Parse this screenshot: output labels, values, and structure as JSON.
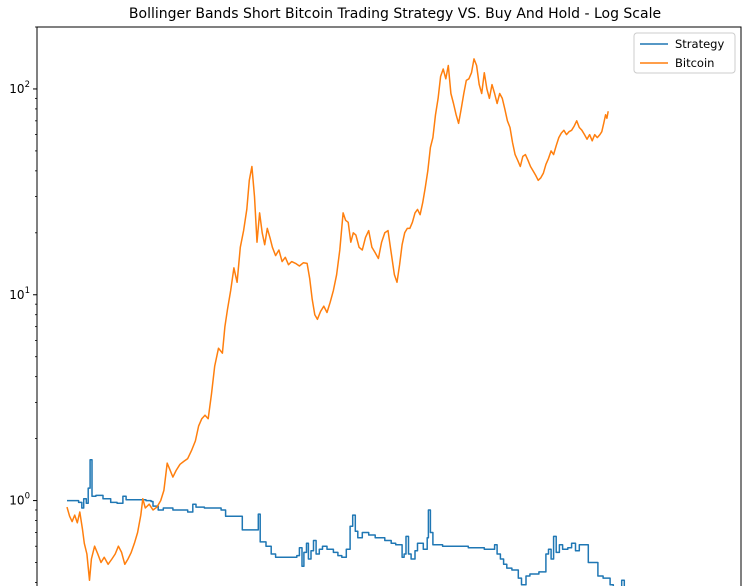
{
  "chart_data": {
    "type": "line",
    "title": "Bollinger Bands Short Bitcoin Trading Strategy VS. Buy And Hold - Log Scale",
    "xlabel": "",
    "ylabel": "",
    "y_scale": "log",
    "ylim": [
      0.34,
      200
    ],
    "xlim": [
      0,
      100
    ],
    "y_ticks": [
      {
        "value": 1,
        "base": "10",
        "exp": "0"
      },
      {
        "value": 10,
        "base": "10",
        "exp": "1"
      },
      {
        "value": 100,
        "base": "10",
        "exp": "2"
      }
    ],
    "x_tick_labels": [],
    "legend_placement": "upper right",
    "grid": false,
    "series": [
      {
        "name": "Strategy",
        "color": "#1f77b4",
        "step": true,
        "points": [
          [
            0,
            1.0
          ],
          [
            1.2,
            1.0
          ],
          [
            1.8,
            0.98
          ],
          [
            2.3,
            0.92
          ],
          [
            2.6,
            1.02
          ],
          [
            3.0,
            0.97
          ],
          [
            3.3,
            1.15
          ],
          [
            3.6,
            1.58
          ],
          [
            3.9,
            1.05
          ],
          [
            4.5,
            1.06
          ],
          [
            5.6,
            1.02
          ],
          [
            6.8,
            0.98
          ],
          [
            7.8,
            0.97
          ],
          [
            8.7,
            1.05
          ],
          [
            9.2,
            1.01
          ],
          [
            10.5,
            1.01
          ],
          [
            12.3,
            1.0
          ],
          [
            13.1,
            0.99
          ],
          [
            13.4,
            0.94
          ],
          [
            14.2,
            0.9
          ],
          [
            15.0,
            0.92
          ],
          [
            16.5,
            0.9
          ],
          [
            18.8,
            0.88
          ],
          [
            19.6,
            0.96
          ],
          [
            20.1,
            0.93
          ],
          [
            21.4,
            0.92
          ],
          [
            24.0,
            0.9
          ],
          [
            24.7,
            0.84
          ],
          [
            27.3,
            0.72
          ],
          [
            29.4,
            0.72
          ],
          [
            29.8,
            0.86
          ],
          [
            30.1,
            0.63
          ],
          [
            31.0,
            0.6
          ],
          [
            31.8,
            0.55
          ],
          [
            32.5,
            0.53
          ],
          [
            35.8,
            0.54
          ],
          [
            36.2,
            0.59
          ],
          [
            36.6,
            0.48
          ],
          [
            36.9,
            0.56
          ],
          [
            37.3,
            0.62
          ],
          [
            37.6,
            0.52
          ],
          [
            38.0,
            0.57
          ],
          [
            38.4,
            0.64
          ],
          [
            38.8,
            0.55
          ],
          [
            39.3,
            0.58
          ],
          [
            39.8,
            0.6
          ],
          [
            40.5,
            0.58
          ],
          [
            41.5,
            0.56
          ],
          [
            42.2,
            0.54
          ],
          [
            42.8,
            0.53
          ],
          [
            43.0,
            0.53
          ],
          [
            43.5,
            0.58
          ],
          [
            44.1,
            0.75
          ],
          [
            44.5,
            0.85
          ],
          [
            44.9,
            0.71
          ],
          [
            45.3,
            0.66
          ],
          [
            46.0,
            0.7
          ],
          [
            47.0,
            0.68
          ],
          [
            48.0,
            0.66
          ],
          [
            49.5,
            0.64
          ],
          [
            50.5,
            0.62
          ],
          [
            51.2,
            0.61
          ],
          [
            51.8,
            0.61
          ],
          [
            52.2,
            0.53
          ],
          [
            52.5,
            0.55
          ],
          [
            52.8,
            0.67
          ],
          [
            53.2,
            0.55
          ],
          [
            53.6,
            0.52
          ],
          [
            54.2,
            0.57
          ],
          [
            54.6,
            0.62
          ],
          [
            55.0,
            0.62
          ],
          [
            55.5,
            0.58
          ],
          [
            56.1,
            0.66
          ],
          [
            56.3,
            0.9
          ],
          [
            56.6,
            0.7
          ],
          [
            57.0,
            0.61
          ],
          [
            58.5,
            0.6
          ],
          [
            60.0,
            0.6
          ],
          [
            62.5,
            0.59
          ],
          [
            65.0,
            0.58
          ],
          [
            66.1,
            0.58
          ],
          [
            66.6,
            0.61
          ],
          [
            67.0,
            0.55
          ],
          [
            67.5,
            0.52
          ],
          [
            68.0,
            0.49
          ],
          [
            68.5,
            0.47
          ],
          [
            69.3,
            0.46
          ],
          [
            70.3,
            0.42
          ],
          [
            70.8,
            0.39
          ],
          [
            71.5,
            0.43
          ],
          [
            72.1,
            0.44
          ],
          [
            72.8,
            0.44
          ],
          [
            73.5,
            0.45
          ],
          [
            74.2,
            0.45
          ],
          [
            74.6,
            0.55
          ],
          [
            75.0,
            0.58
          ],
          [
            75.4,
            0.52
          ],
          [
            75.8,
            0.67
          ],
          [
            76.2,
            0.56
          ],
          [
            76.7,
            0.61
          ],
          [
            77.2,
            0.58
          ],
          [
            78.0,
            0.59
          ],
          [
            78.6,
            0.62
          ],
          [
            79.2,
            0.57
          ],
          [
            79.8,
            0.61
          ],
          [
            81.2,
            0.5
          ],
          [
            82.7,
            0.43
          ],
          [
            83.5,
            0.42
          ],
          [
            84.6,
            0.39
          ],
          [
            85.1,
            0.38
          ],
          [
            86.0,
            0.38
          ],
          [
            86.4,
            0.41
          ],
          [
            86.8,
            0.38
          ],
          [
            87.8,
            0.38
          ],
          [
            89.0,
            0.38
          ]
        ]
      },
      {
        "name": "Bitcoin",
        "color": "#ff7f0e",
        "step": false,
        "points": [
          [
            0,
            0.93
          ],
          [
            0.4,
            0.84
          ],
          [
            0.8,
            0.79
          ],
          [
            1.2,
            0.85
          ],
          [
            1.6,
            0.78
          ],
          [
            2.0,
            0.88
          ],
          [
            2.4,
            0.73
          ],
          [
            2.7,
            0.62
          ],
          [
            3.1,
            0.55
          ],
          [
            3.5,
            0.41
          ],
          [
            3.8,
            0.52
          ],
          [
            4.3,
            0.6
          ],
          [
            4.8,
            0.55
          ],
          [
            5.3,
            0.5
          ],
          [
            5.8,
            0.53
          ],
          [
            6.4,
            0.49
          ],
          [
            7.0,
            0.52
          ],
          [
            7.5,
            0.55
          ],
          [
            8.0,
            0.6
          ],
          [
            8.5,
            0.56
          ],
          [
            9.0,
            0.49
          ],
          [
            9.5,
            0.52
          ],
          [
            10.0,
            0.56
          ],
          [
            10.5,
            0.62
          ],
          [
            11.0,
            0.7
          ],
          [
            11.5,
            0.85
          ],
          [
            11.8,
            1.02
          ],
          [
            12.2,
            0.92
          ],
          [
            12.8,
            0.96
          ],
          [
            13.4,
            0.9
          ],
          [
            14.0,
            0.93
          ],
          [
            14.6,
            1.0
          ],
          [
            15.1,
            1.12
          ],
          [
            15.6,
            1.52
          ],
          [
            16.0,
            1.42
          ],
          [
            16.5,
            1.3
          ],
          [
            17.0,
            1.4
          ],
          [
            17.6,
            1.5
          ],
          [
            18.2,
            1.55
          ],
          [
            18.8,
            1.6
          ],
          [
            19.4,
            1.75
          ],
          [
            20.0,
            1.95
          ],
          [
            20.5,
            2.3
          ],
          [
            21.0,
            2.5
          ],
          [
            21.5,
            2.6
          ],
          [
            22.0,
            2.5
          ],
          [
            22.5,
            3.3
          ],
          [
            23.0,
            4.5
          ],
          [
            23.6,
            5.5
          ],
          [
            24.2,
            5.2
          ],
          [
            24.6,
            7.0
          ],
          [
            25.0,
            8.5
          ],
          [
            25.5,
            10.5
          ],
          [
            26.0,
            13.5
          ],
          [
            26.5,
            11.5
          ],
          [
            27.0,
            17.0
          ],
          [
            27.5,
            20.5
          ],
          [
            28.0,
            26.0
          ],
          [
            28.4,
            36.0
          ],
          [
            28.8,
            42.0
          ],
          [
            29.2,
            30.0
          ],
          [
            29.6,
            18.0
          ],
          [
            30.0,
            25.0
          ],
          [
            30.4,
            20.0
          ],
          [
            30.8,
            17.5
          ],
          [
            31.2,
            21.0
          ],
          [
            31.6,
            19.0
          ],
          [
            32.0,
            17.0
          ],
          [
            32.5,
            15.5
          ],
          [
            33.0,
            16.5
          ],
          [
            33.5,
            14.5
          ],
          [
            34.0,
            15.2
          ],
          [
            34.5,
            14.0
          ],
          [
            35.0,
            14.5
          ],
          [
            35.6,
            14.2
          ],
          [
            36.2,
            13.8
          ],
          [
            36.8,
            14.3
          ],
          [
            37.4,
            14.2
          ],
          [
            37.8,
            12.0
          ],
          [
            38.2,
            9.5
          ],
          [
            38.6,
            8.0
          ],
          [
            39.0,
            7.6
          ],
          [
            39.5,
            8.3
          ],
          [
            40.0,
            8.8
          ],
          [
            40.5,
            8.2
          ],
          [
            41.0,
            9.2
          ],
          [
            41.5,
            10.5
          ],
          [
            42.0,
            12.5
          ],
          [
            42.5,
            16.5
          ],
          [
            43.0,
            25.0
          ],
          [
            43.4,
            23.0
          ],
          [
            43.8,
            22.5
          ],
          [
            44.2,
            18.0
          ],
          [
            44.6,
            20.0
          ],
          [
            45.0,
            19.5
          ],
          [
            45.5,
            17.0
          ],
          [
            46.0,
            16.5
          ],
          [
            46.5,
            19.0
          ],
          [
            47.0,
            20.5
          ],
          [
            47.5,
            17.0
          ],
          [
            48.0,
            16.0
          ],
          [
            48.5,
            15.0
          ],
          [
            49.0,
            18.0
          ],
          [
            49.5,
            20.0
          ],
          [
            50.0,
            20.5
          ],
          [
            50.5,
            16.0
          ],
          [
            51.0,
            12.5
          ],
          [
            51.4,
            11.5
          ],
          [
            51.8,
            14.0
          ],
          [
            52.2,
            17.5
          ],
          [
            52.6,
            20.0
          ],
          [
            53.0,
            21.0
          ],
          [
            53.4,
            21.0
          ],
          [
            53.8,
            22.5
          ],
          [
            54.2,
            25.0
          ],
          [
            54.6,
            26.0
          ],
          [
            55.0,
            24.5
          ],
          [
            55.4,
            28.0
          ],
          [
            55.8,
            33.0
          ],
          [
            56.2,
            40.0
          ],
          [
            56.6,
            52.0
          ],
          [
            57.0,
            58.0
          ],
          [
            57.4,
            75.0
          ],
          [
            57.8,
            90.0
          ],
          [
            58.2,
            115.0
          ],
          [
            58.6,
            125.0
          ],
          [
            59.0,
            112.0
          ],
          [
            59.4,
            130.0
          ],
          [
            59.8,
            95.0
          ],
          [
            60.2,
            85.0
          ],
          [
            60.6,
            75.0
          ],
          [
            61.0,
            68.0
          ],
          [
            61.4,
            80.0
          ],
          [
            61.8,
            95.0
          ],
          [
            62.2,
            110.0
          ],
          [
            62.6,
            112.0
          ],
          [
            63.0,
            120.0
          ],
          [
            63.4,
            140.0
          ],
          [
            63.8,
            130.0
          ],
          [
            64.2,
            105.0
          ],
          [
            64.6,
            95.0
          ],
          [
            65.0,
            120.0
          ],
          [
            65.4,
            100.0
          ],
          [
            65.8,
            90.0
          ],
          [
            66.2,
            105.0
          ],
          [
            66.6,
            95.0
          ],
          [
            67.0,
            85.0
          ],
          [
            67.4,
            95.0
          ],
          [
            67.8,
            90.0
          ],
          [
            68.2,
            80.0
          ],
          [
            68.6,
            70.0
          ],
          [
            69.0,
            65.0
          ],
          [
            69.4,
            55.0
          ],
          [
            69.8,
            48.0
          ],
          [
            70.2,
            45.0
          ],
          [
            70.6,
            42.0
          ],
          [
            71.0,
            47.0
          ],
          [
            71.4,
            48.0
          ],
          [
            71.8,
            45.0
          ],
          [
            72.2,
            42.0
          ],
          [
            72.6,
            40.0
          ],
          [
            73.0,
            38.0
          ],
          [
            73.4,
            36.0
          ],
          [
            73.8,
            37.0
          ],
          [
            74.2,
            39.0
          ],
          [
            74.6,
            43.0
          ],
          [
            75.0,
            46.0
          ],
          [
            75.4,
            50.0
          ],
          [
            75.8,
            48.0
          ],
          [
            76.2,
            53.0
          ],
          [
            76.6,
            58.0
          ],
          [
            77.0,
            61.0
          ],
          [
            77.4,
            63.0
          ],
          [
            77.8,
            60.0
          ],
          [
            78.2,
            62.0
          ],
          [
            78.6,
            63.0
          ],
          [
            79.0,
            66.0
          ],
          [
            79.4,
            70.0
          ],
          [
            79.8,
            65.0
          ],
          [
            80.2,
            63.0
          ],
          [
            80.6,
            60.0
          ],
          [
            81.0,
            57.0
          ],
          [
            81.4,
            60.0
          ],
          [
            81.8,
            56.0
          ],
          [
            82.2,
            60.0
          ],
          [
            82.6,
            58.0
          ],
          [
            83.0,
            60.0
          ],
          [
            83.3,
            62.0
          ],
          [
            83.6,
            68.0
          ],
          [
            83.9,
            75.0
          ],
          [
            84.1,
            72.0
          ],
          [
            84.3,
            78.0
          ]
        ]
      }
    ]
  }
}
